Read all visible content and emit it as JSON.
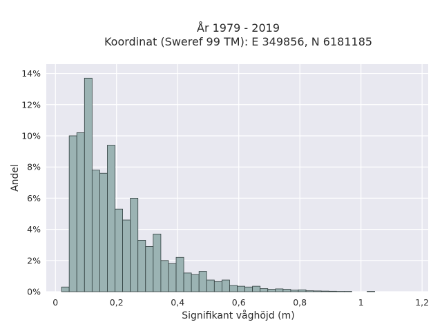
{
  "chart_data": {
    "type": "bar",
    "title": "År 1979 - 2019",
    "subtitle": "Koordinat (Sweref 99 TM): E 349856, N 6181185",
    "xlabel": "Signifikant våghöjd (m)",
    "ylabel": "Andel",
    "xlim": [
      -0.03,
      1.22
    ],
    "ylim": [
      0,
      14.6
    ],
    "x_ticks": [
      0,
      0.2,
      0.4,
      0.6,
      0.8,
      1,
      1.2
    ],
    "x_tick_labels": [
      "0",
      "0,2",
      "0,4",
      "0,6",
      "0,8",
      "1",
      "1,2"
    ],
    "y_ticks": [
      0,
      2,
      4,
      6,
      8,
      10,
      12,
      14
    ],
    "y_tick_labels": [
      "0%",
      "2%",
      "4%",
      "6%",
      "8%",
      "10%",
      "12%",
      "14%"
    ],
    "bin_width": 0.025,
    "bin_starts": [
      0.02,
      0.045,
      0.07,
      0.095,
      0.12,
      0.145,
      0.17,
      0.195,
      0.22,
      0.245,
      0.27,
      0.295,
      0.32,
      0.345,
      0.37,
      0.395,
      0.42,
      0.445,
      0.47,
      0.495,
      0.52,
      0.545,
      0.57,
      0.595,
      0.62,
      0.645,
      0.67,
      0.695,
      0.72,
      0.745,
      0.77,
      0.795,
      0.82,
      0.845,
      0.87,
      0.895,
      0.92,
      0.945,
      1.02
    ],
    "values": [
      0.3,
      10.0,
      10.2,
      13.7,
      7.8,
      7.6,
      9.4,
      5.3,
      4.6,
      6.0,
      3.3,
      2.9,
      3.7,
      2.0,
      1.8,
      2.2,
      1.2,
      1.1,
      1.3,
      0.75,
      0.65,
      0.75,
      0.4,
      0.35,
      0.3,
      0.35,
      0.2,
      0.15,
      0.18,
      0.15,
      0.1,
      0.12,
      0.06,
      0.05,
      0.04,
      0.03,
      0.02,
      0.02,
      0.02
    ],
    "bar_color": "#9bb3b3",
    "bar_edge_color": "#2f3d3d",
    "background_color": "#e8e8f0",
    "grid": true,
    "legend": "none"
  }
}
